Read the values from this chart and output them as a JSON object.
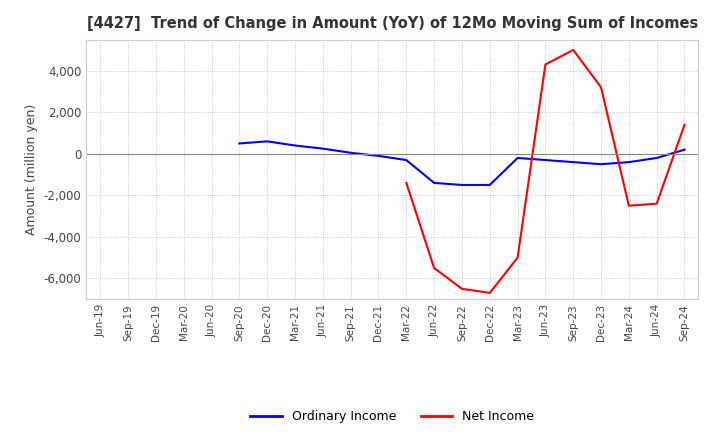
{
  "title": "[4427]  Trend of Change in Amount (YoY) of 12Mo Moving Sum of Incomes",
  "ylabel": "Amount (million yen)",
  "ylim": [
    -7000,
    5500
  ],
  "yticks": [
    -6000,
    -4000,
    -2000,
    0,
    2000,
    4000
  ],
  "background_color": "#ffffff",
  "grid_color": "#bbbbbb",
  "ordinary_income_color": "#0000ff",
  "net_income_color": "#ff0000",
  "x_labels": [
    "Jun-19",
    "Sep-19",
    "Dec-19",
    "Mar-20",
    "Jun-20",
    "Sep-20",
    "Dec-20",
    "Mar-21",
    "Jun-21",
    "Sep-21",
    "Dec-21",
    "Mar-22",
    "Jun-22",
    "Sep-22",
    "Dec-22",
    "Mar-23",
    "Jun-23",
    "Sep-23",
    "Dec-23",
    "Mar-24",
    "Jun-24",
    "Sep-24"
  ],
  "ordinary_income": [
    null,
    null,
    null,
    null,
    null,
    500,
    600,
    400,
    250,
    50,
    -100,
    -300,
    -1400,
    -1500,
    -1500,
    -200,
    -300,
    -400,
    -500,
    -400,
    -200,
    200
  ],
  "net_income": [
    null,
    null,
    null,
    null,
    null,
    null,
    null,
    null,
    null,
    null,
    null,
    -1400,
    -5500,
    -6500,
    -6700,
    -5000,
    4300,
    5000,
    3200,
    -2500,
    -2400,
    1400
  ]
}
